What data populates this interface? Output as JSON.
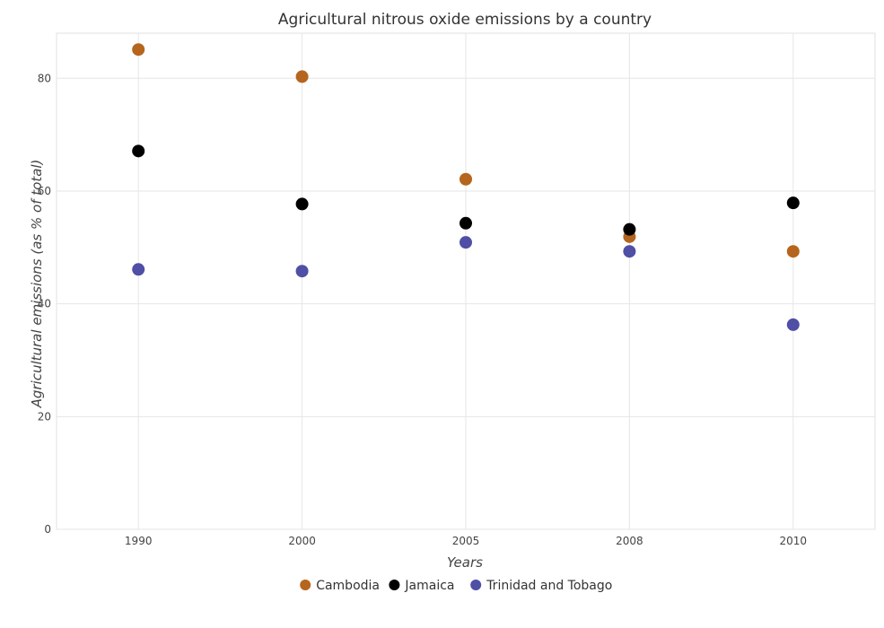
{
  "chart_data": {
    "type": "scatter",
    "title": "Agricultural nitrous oxide emissions by a country",
    "xlabel": "Years",
    "ylabel": "Agricultural emissions (as % of total)",
    "categories": [
      "1990",
      "2000",
      "2005",
      "2008",
      "2010"
    ],
    "ylim": [
      0,
      88
    ],
    "yticks": [
      0,
      20,
      40,
      60,
      80
    ],
    "grid": true,
    "legend_position": "bottom",
    "series": [
      {
        "name": "Cambodia",
        "color": "#b5651d",
        "values": [
          85.1,
          80.3,
          62.1,
          51.9,
          49.3
        ]
      },
      {
        "name": "Jamaica",
        "color": "#000000",
        "values": [
          67.1,
          57.7,
          54.3,
          53.2,
          57.9
        ]
      },
      {
        "name": "Trinidad and Tobago",
        "color": "#4f4fa6",
        "values": [
          46.1,
          45.8,
          50.9,
          49.3,
          36.3
        ]
      }
    ]
  }
}
